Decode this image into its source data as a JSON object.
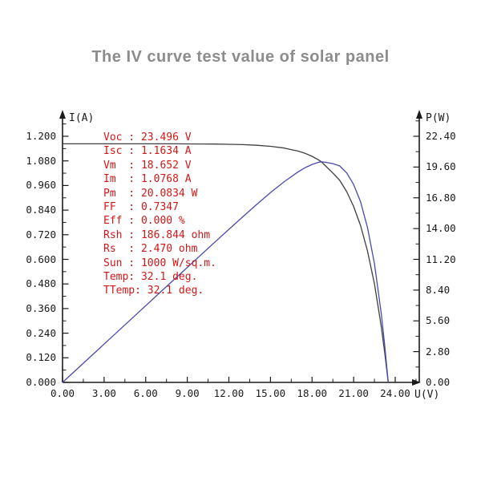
{
  "title": "The IV curve test value of solar panel",
  "colors": {
    "title": "#8c8c8c",
    "annotation_red": "#d01818",
    "iv_curve": "#3f3f3f",
    "power_curve": "#4a49ad",
    "axis": "#1a1a1a"
  },
  "axes": {
    "x": {
      "label": "U(V)",
      "min": 0,
      "max": 24,
      "major_step": 3,
      "minor_step": 1.5,
      "tick_values": [
        0,
        3,
        6,
        9,
        12,
        15,
        18,
        21,
        24
      ],
      "tick_labels": [
        "0.00",
        "3.00",
        "6.00",
        "9.00",
        "12.00",
        "15.00",
        "18.00",
        "21.00",
        "24.00"
      ]
    },
    "y_left": {
      "label": "I(A)",
      "min": 0,
      "max": 1.2,
      "major_step": 0.12,
      "minor_step": 0.06,
      "tick_values": [
        0,
        0.12,
        0.24,
        0.36,
        0.48,
        0.6,
        0.72,
        0.84,
        0.96,
        1.08,
        1.2
      ],
      "tick_labels": [
        "0.000",
        "0.120",
        "0.240",
        "0.360",
        "0.480",
        "0.600",
        "0.720",
        "0.840",
        "0.960",
        "1.080",
        "1.200"
      ]
    },
    "y_right": {
      "label": "P(W)",
      "min": 0,
      "max": 22.4,
      "major_step": 2.8,
      "minor_step": 1.4,
      "tick_values": [
        0,
        2.8,
        5.6,
        8.4,
        11.2,
        14,
        16.8,
        19.6,
        22.4
      ],
      "tick_labels": [
        "0.00",
        "2.80",
        "5.60",
        "8.40",
        "11.20",
        "14.00",
        "16.80",
        "19.60",
        "22.40"
      ]
    }
  },
  "chart_data": {
    "type": "line",
    "title": "The IV curve test value of solar panel",
    "xlabel": "U(V)",
    "ylabel_left": "I(A)",
    "ylabel_right": "P(W)",
    "xlim": [
      0,
      24
    ],
    "ylim_left": [
      0,
      1.2
    ],
    "ylim_right": [
      0,
      22.4
    ],
    "grid": false,
    "legend": "none",
    "x": [
      0,
      1,
      2,
      3,
      4,
      5,
      6,
      7,
      8,
      9,
      10,
      11,
      12,
      13,
      14,
      15,
      16,
      17,
      17.5,
      18,
      18.5,
      18.652,
      19,
      19.5,
      20,
      20.5,
      21,
      21.5,
      22,
      22.5,
      23,
      23.25,
      23.496
    ],
    "series": [
      {
        "name": "I-V curve (current vs voltage)",
        "axis": "left",
        "color": "#3f3f3f",
        "values": [
          1.1634,
          1.1634,
          1.1634,
          1.1634,
          1.1634,
          1.1633,
          1.1633,
          1.1632,
          1.1631,
          1.1629,
          1.1626,
          1.162,
          1.161,
          1.1592,
          1.1563,
          1.1512,
          1.1425,
          1.1277,
          1.1167,
          1.1023,
          1.0835,
          1.0768,
          1.054,
          1.021,
          0.9849,
          0.93,
          0.8579,
          0.7641,
          0.6408,
          0.4802,
          0.2699,
          0.1416,
          0.0
        ]
      },
      {
        "name": "P-V curve (power vs voltage)",
        "axis": "right",
        "color": "#4a49ad",
        "values": [
          0.0,
          1.163,
          2.327,
          3.49,
          4.653,
          5.817,
          6.98,
          8.142,
          9.303,
          10.466,
          11.626,
          12.782,
          13.932,
          15.07,
          16.188,
          17.268,
          18.28,
          19.171,
          19.542,
          19.842,
          20.045,
          20.083,
          20.026,
          19.91,
          19.699,
          19.066,
          18.017,
          16.429,
          14.097,
          10.805,
          6.207,
          3.292,
          0.0
        ]
      }
    ]
  },
  "readout": {
    "lines": [
      {
        "label": "Voc",
        "value": "23.496 V",
        "text": "Voc : 23.496 V"
      },
      {
        "label": "Isc",
        "value": "1.1634 A",
        "text": "Isc : 1.1634 A"
      },
      {
        "label": "Vm",
        "value": "18.652 V",
        "text": "Vm  : 18.652 V"
      },
      {
        "label": "Im",
        "value": "1.0768 A",
        "text": "Im  : 1.0768 A"
      },
      {
        "label": "Pm",
        "value": "20.0834 W",
        "text": "Pm  : 20.0834 W"
      },
      {
        "label": "FF",
        "value": "0.7347",
        "text": "FF  : 0.7347"
      },
      {
        "label": "Eff",
        "value": "0.000 %",
        "text": "Eff : 0.000 %"
      },
      {
        "label": "Rsh",
        "value": "186.844 ohm",
        "text": "Rsh : 186.844 ohm"
      },
      {
        "label": "Rs",
        "value": "2.470 ohm",
        "text": "Rs  : 2.470 ohm"
      },
      {
        "label": "Sun",
        "value": "1000 W/sq.m.",
        "text": "Sun : 1000 W/sq.m."
      },
      {
        "label": "Temp",
        "value": "32.1 deg.",
        "text": "Temp: 32.1 deg."
      },
      {
        "label": "TTemp",
        "value": "32.1 deg.",
        "text": "TTemp: 32.1 deg."
      }
    ]
  }
}
